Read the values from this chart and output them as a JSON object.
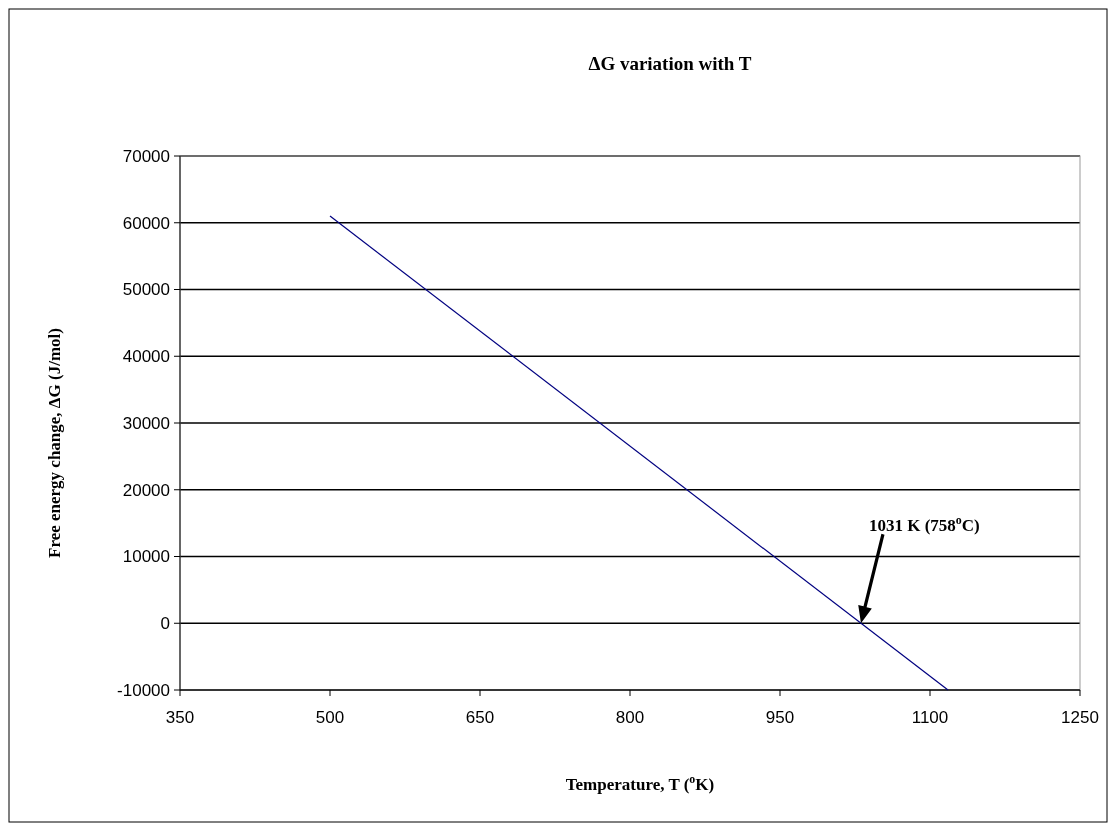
{
  "chart_data": {
    "type": "line",
    "title": "ΔG variation with T",
    "xlabel": "Temperature, T ($^{o}$K)",
    "ylabel": "Free energy change, ΔG (J/mol)",
    "x": [
      500,
      1118
    ],
    "series": [
      {
        "color": "#000080",
        "values": [
          61000,
          -10000
        ]
      }
    ],
    "xlim": [
      350,
      1250
    ],
    "xticks": [
      350,
      500,
      650,
      800,
      950,
      1100,
      1250
    ],
    "ylim": [
      -10000,
      70000
    ],
    "yticks": [
      -10000,
      0,
      10000,
      20000,
      30000,
      40000,
      50000,
      60000,
      70000
    ],
    "grid": "y",
    "marker": "none",
    "line_style": "solid",
    "annotations": [
      "1031 K (758$^{o}$C)"
    ]
  }
}
